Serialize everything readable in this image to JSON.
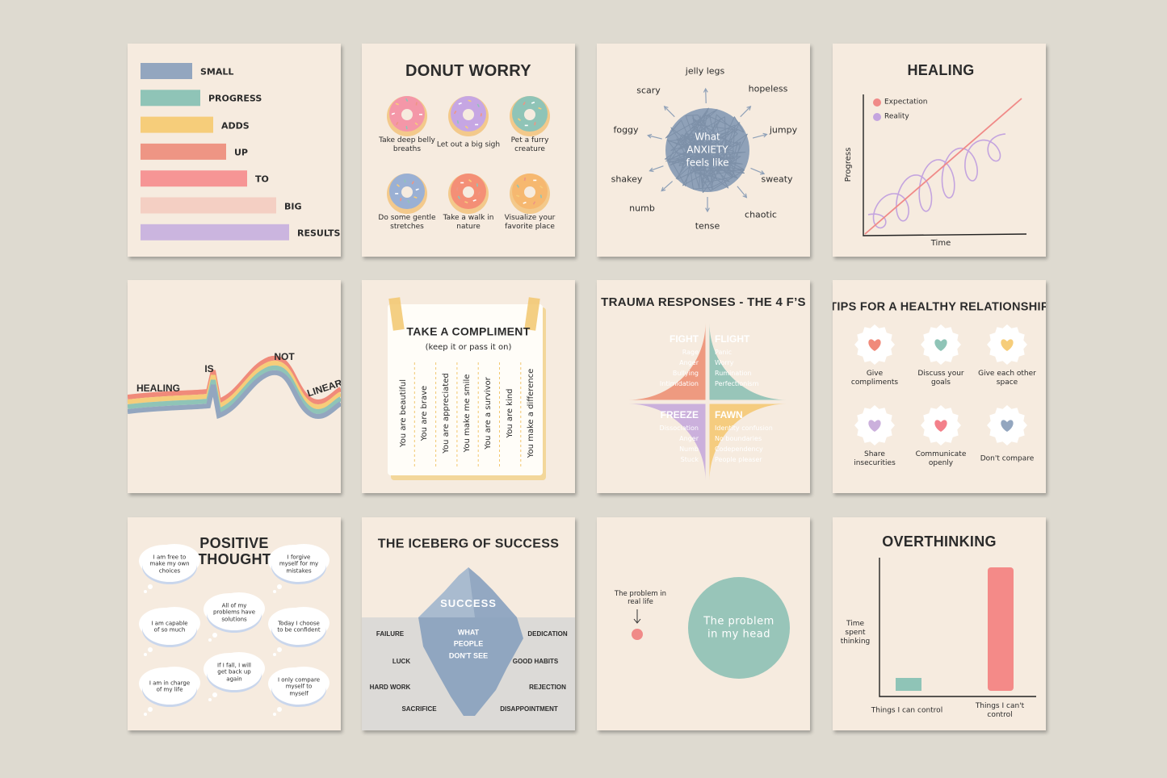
{
  "cards": [
    {
      "bars": [
        "SMALL",
        "PROGRESS",
        "ADDS",
        "UP",
        "TO",
        "BIG",
        "RESULTS"
      ]
    },
    {
      "title": "DONUT WORRY",
      "items": [
        "Take deep belly breaths",
        "Let out a big sigh",
        "Pet a furry creature",
        "Do some gentle stretches",
        "Take a walk in nature",
        "Visualize your favorite place"
      ]
    },
    {
      "center": "What ANXIETY feels like",
      "words": [
        "jelly legs",
        "hopeless",
        "jumpy",
        "sweaty",
        "chaotic",
        "tense",
        "numb",
        "shakey",
        "foggy",
        "scary"
      ]
    },
    {
      "title": "HEALING",
      "legend": [
        "Expectation",
        "Reality"
      ],
      "y_label": "Progress",
      "x_label": "Time"
    },
    {
      "words": [
        "HEALING",
        "IS",
        "NOT",
        "LINEAR"
      ]
    },
    {
      "title": "TAKE A COMPLIMENT",
      "subtitle": "(keep it or pass it on)",
      "strips": [
        "You are beautiful",
        "You are brave",
        "You are appreciated",
        "You make me smile",
        "You are a survivor",
        "You are kind",
        "You make a difference"
      ]
    },
    {
      "title": "TRAUMA RESPONSES - THE 4 F’S",
      "quadrants": [
        {
          "name": "FIGHT",
          "items": [
            "Rage",
            "Anger",
            "Bullying",
            "Intimidation"
          ]
        },
        {
          "name": "FLIGHT",
          "items": [
            "Panic",
            "Worry",
            "Rumination",
            "Perfectionism"
          ]
        },
        {
          "name": "FREEZE",
          "items": [
            "Dissociation",
            "Anger",
            "Numb",
            "Stuck"
          ]
        },
        {
          "name": "FAWN",
          "items": [
            "Identity confusion",
            "No boundaries",
            "Codependency",
            "People pleaser"
          ]
        }
      ]
    },
    {
      "title": "TIPS FOR A HEALTHY RELATIONSHIP",
      "tips": [
        "Give compliments",
        "Discuss your goals",
        "Give each other space",
        "Share insecurities",
        "Communicate openly",
        "Don't compare"
      ]
    },
    {
      "title": "POSITIVE THOUGHTS",
      "thoughts": [
        "I am free to make my own choices",
        "I forgive myself for my mistakes",
        "All of my problems have solutions",
        "I am capable of so much",
        "Today I choose to be confident",
        "I am in charge of my life",
        "If I fall, I will get back up again",
        "I only compare myself to myself"
      ]
    },
    {
      "title": "THE ICEBERG OF SUCCESS",
      "top": "SUCCESS",
      "hidden": "WHAT PEOPLE DON'T SEE",
      "left": [
        "FAILURE",
        "LUCK",
        "HARD WORK",
        "SACRIFICE"
      ],
      "right": [
        "DEDICATION",
        "GOOD HABITS",
        "REJECTION",
        "DISAPPOINTMENT"
      ]
    },
    {
      "real": "The problem in real life",
      "head": "The problem in my head"
    },
    {
      "title": "OVERTHINKING",
      "y_label": "Time spent thinking",
      "categories": [
        "Things I can control",
        "Things I can't control"
      ]
    }
  ]
}
